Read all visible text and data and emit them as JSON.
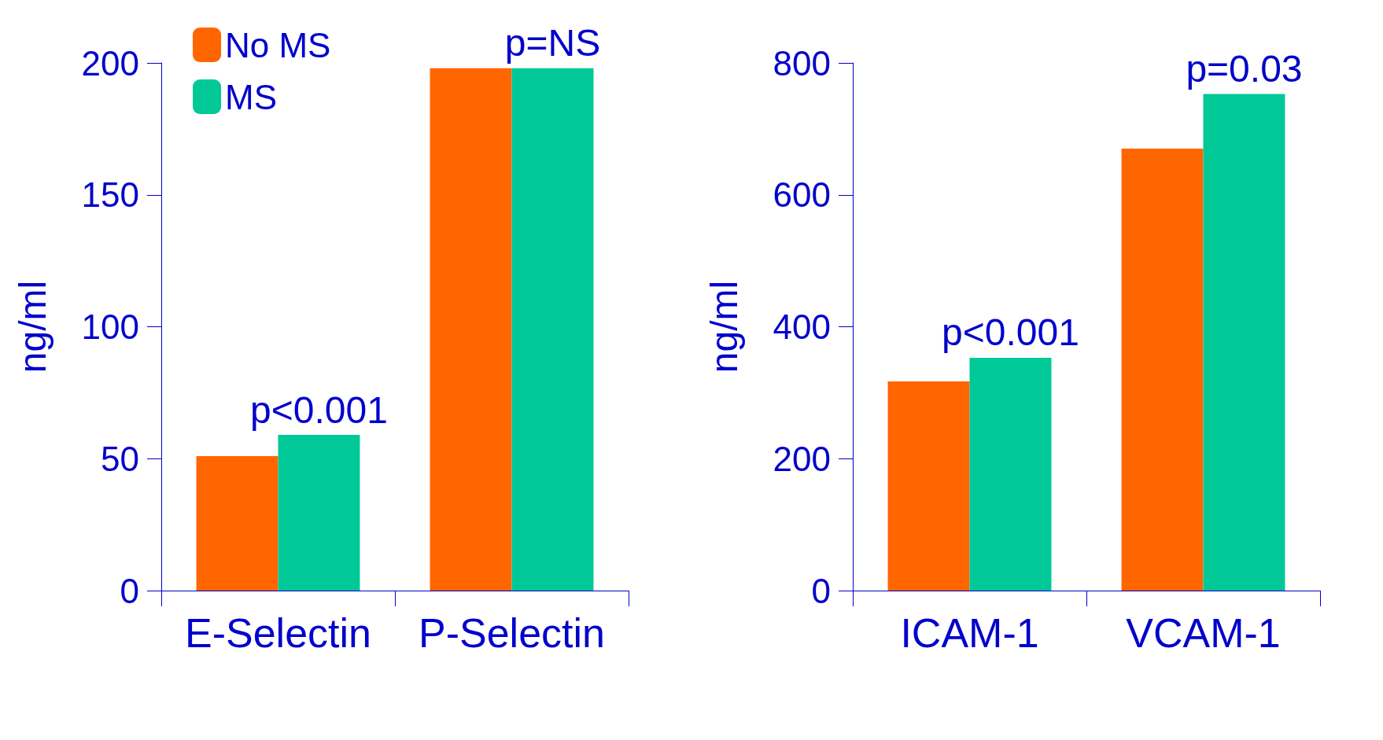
{
  "chart_data": [
    {
      "type": "bar",
      "ylabel": "ng/ml",
      "categories": [
        "E-Selectin",
        "P-Selectin"
      ],
      "series": [
        {
          "name": "No MS",
          "color": "#ff6600",
          "values": [
            51,
            198
          ]
        },
        {
          "name": "MS",
          "color": "#00c896",
          "values": [
            59,
            198
          ]
        }
      ],
      "ylim": [
        0,
        200
      ],
      "yticks": [
        0,
        50,
        100,
        150,
        200
      ],
      "grid": false,
      "legend": "top left",
      "annotations": [
        {
          "text": "p<0.001",
          "x": "E-Selectin",
          "y": 59
        },
        {
          "text": "p=NS",
          "x": "P-Selectin",
          "y": 198
        }
      ]
    },
    {
      "type": "bar",
      "ylabel": "ng/ml",
      "categories": [
        "ICAM-1",
        "VCAM-1"
      ],
      "series": [
        {
          "name": "No MS",
          "color": "#ff6600",
          "values": [
            317,
            670
          ]
        },
        {
          "name": "MS",
          "color": "#00c896",
          "values": [
            353,
            753
          ]
        }
      ],
      "ylim": [
        0,
        800
      ],
      "yticks": [
        0,
        200,
        400,
        600,
        800
      ],
      "grid": false,
      "legend": false,
      "annotations": [
        {
          "text": "p<0.001",
          "x": "ICAM-1",
          "y": 353
        },
        {
          "text": "p=0.03",
          "x": "VCAM-1",
          "y": 753
        }
      ]
    }
  ]
}
